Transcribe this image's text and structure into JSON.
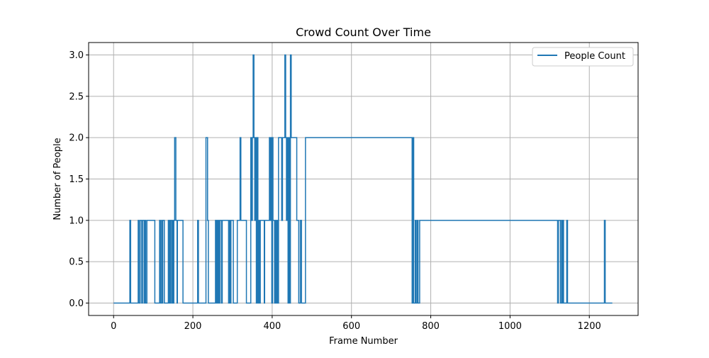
{
  "chart_data": {
    "type": "line",
    "title": "Crowd Count Over Time",
    "xlabel": "Frame Number",
    "ylabel": "Number of People",
    "xlim": [
      -63,
      1323
    ],
    "ylim": [
      -0.15,
      3.15
    ],
    "x_ticks": [
      0,
      200,
      400,
      600,
      800,
      1000,
      1200
    ],
    "x_tick_labels": [
      "0",
      "200",
      "400",
      "600",
      "800",
      "1000",
      "1200"
    ],
    "y_ticks": [
      0.0,
      0.5,
      1.0,
      1.5,
      2.0,
      2.5,
      3.0
    ],
    "y_tick_labels": [
      "0.0",
      "0.5",
      "1.0",
      "1.5",
      "2.0",
      "2.5",
      "3.0"
    ],
    "grid": true,
    "legend_position": "top-right",
    "colors": {
      "series": "#1f77b4",
      "grid": "#b0b0b0",
      "axis": "#000000"
    },
    "series": [
      {
        "name": "People Count",
        "step": "post",
        "x": [
          0,
          41,
          43,
          45,
          62,
          64,
          67,
          71,
          73,
          77,
          79,
          80,
          81,
          84,
          85,
          104,
          116,
          118,
          121,
          123,
          124,
          126,
          128,
          138,
          139,
          141,
          143,
          144,
          147,
          148,
          150,
          152,
          154,
          155,
          157,
          158,
          160,
          161,
          162,
          163,
          175,
          177,
          212,
          214,
          233,
          235,
          237,
          239,
          257,
          258,
          259,
          261,
          262,
          263,
          265,
          266,
          268,
          272,
          274,
          276,
          290,
          292,
          294,
          296,
          300,
          302,
          312,
          315,
          319,
          321,
          323,
          329,
          331,
          335,
          346,
          348,
          350,
          352,
          354,
          356,
          358,
          360,
          362,
          364,
          366,
          368,
          370,
          378,
          380,
          381,
          383,
          393,
          395,
          397,
          399,
          401,
          402,
          404,
          406,
          408,
          410,
          412,
          414,
          416,
          418,
          420,
          422,
          424,
          426,
          432,
          434,
          436,
          438,
          440,
          442,
          444,
          446,
          448,
          450,
          452,
          454,
          456,
          462,
          465,
          467,
          469,
          471,
          474,
          476,
          478,
          480,
          482,
          484,
          753,
          755,
          757,
          759,
          761,
          763,
          766,
          768,
          770,
          772,
          1120,
          1122,
          1127,
          1130,
          1132,
          1134,
          1135,
          1137,
          1143,
          1145,
          1147,
          1238,
          1240,
          1242,
          1258
        ],
        "y": [
          0,
          1,
          0,
          0,
          1,
          0,
          1,
          0,
          1,
          0,
          1,
          1,
          0,
          1,
          1,
          0,
          1,
          0,
          1,
          0,
          1,
          1,
          0,
          1,
          0,
          1,
          0,
          1,
          0,
          1,
          0,
          1,
          2,
          2,
          1,
          1,
          0,
          1,
          1,
          1,
          0,
          0,
          1,
          0,
          2,
          2,
          1,
          0,
          1,
          0,
          1,
          0,
          1,
          0,
          1,
          0,
          1,
          0,
          1,
          1,
          0,
          1,
          0,
          1,
          1,
          0,
          1,
          1,
          2,
          1,
          1,
          1,
          1,
          0,
          2,
          1,
          2,
          3,
          2,
          1,
          2,
          0,
          2,
          0,
          1,
          0,
          1,
          1,
          0,
          1,
          1,
          2,
          1,
          2,
          0,
          2,
          1,
          1,
          0,
          1,
          0,
          1,
          0,
          2,
          2,
          2,
          2,
          1,
          2,
          3,
          2,
          1,
          2,
          0,
          2,
          0,
          3,
          2,
          2,
          2,
          2,
          2,
          1,
          1,
          0,
          0,
          1,
          0,
          0,
          0,
          0,
          0,
          2,
          0,
          2,
          0,
          0,
          1,
          0,
          1,
          0,
          0,
          1,
          0,
          1,
          0,
          1,
          0,
          1,
          0,
          0,
          1,
          0,
          0,
          1,
          0,
          0,
          0
        ]
      }
    ]
  }
}
